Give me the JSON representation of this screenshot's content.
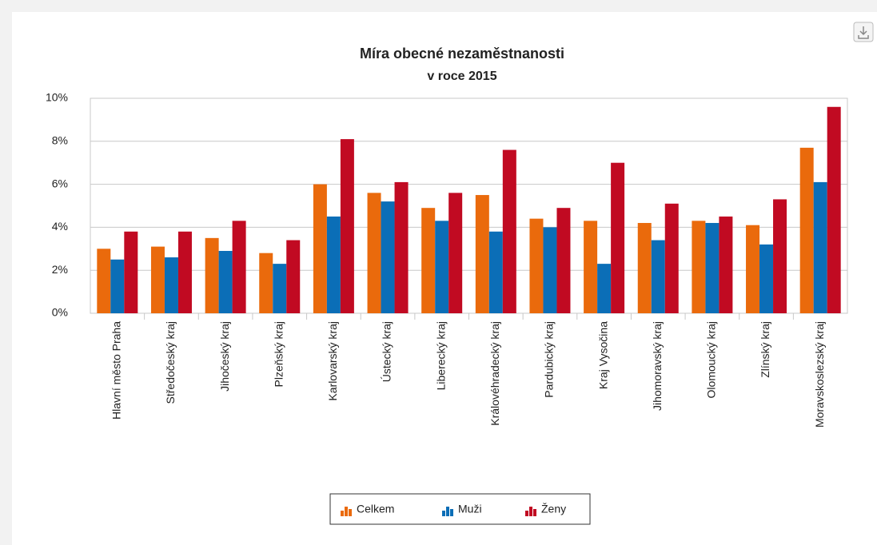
{
  "chart_data": {
    "type": "bar",
    "title": "Míra obecné nezaměstnanosti",
    "subtitle": "v roce 2015",
    "categories": [
      "Hlavní město Praha",
      "Středočeský kraj",
      "Jihočeský kraj",
      "Plzeňský kraj",
      "Karlovarský kraj",
      "Ústecký kraj",
      "Liberecký kraj",
      "Královéhradecký kraj",
      "Pardubický kraj",
      "Kraj Vysočina",
      "Jihomoravský kraj",
      "Olomoucký kraj",
      "Zlínský kraj",
      "Moravskoslezský kraj"
    ],
    "series": [
      {
        "name": "Celkem",
        "color": "#ea6a0c",
        "values": [
          3.0,
          3.1,
          3.5,
          2.8,
          6.0,
          5.6,
          4.9,
          5.5,
          4.4,
          4.3,
          4.2,
          4.3,
          4.1,
          7.7
        ]
      },
      {
        "name": "Muži",
        "color": "#0b6eb7",
        "values": [
          2.5,
          2.6,
          2.9,
          2.3,
          4.5,
          5.2,
          4.3,
          3.8,
          4.0,
          2.3,
          3.4,
          4.2,
          3.2,
          6.1
        ]
      },
      {
        "name": "Ženy",
        "color": "#c10a22",
        "values": [
          3.8,
          3.8,
          4.3,
          3.4,
          8.1,
          6.1,
          5.6,
          7.6,
          4.9,
          7.0,
          5.1,
          4.5,
          5.3,
          9.6
        ]
      }
    ],
    "ylim": [
      0,
      10
    ],
    "yticks": [
      {
        "value": 0,
        "label": "0%"
      },
      {
        "value": 2,
        "label": "2%"
      },
      {
        "value": 4,
        "label": "4%"
      },
      {
        "value": 6,
        "label": "6%"
      },
      {
        "value": 8,
        "label": "8%"
      },
      {
        "value": 10,
        "label": "10%"
      }
    ],
    "grid": true
  }
}
